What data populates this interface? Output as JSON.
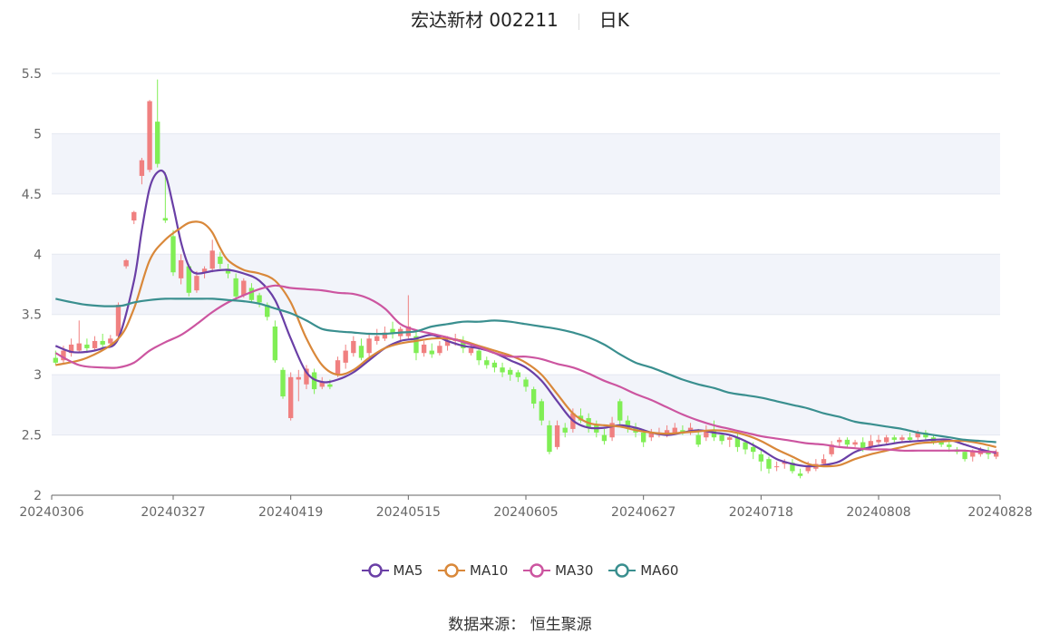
{
  "header": {
    "stock_name": "宏达新材 002211",
    "period": "日K"
  },
  "footer": {
    "source": "数据来源：  恒生聚源"
  },
  "legend": [
    {
      "name": "MA5",
      "color": "#6a3fa6"
    },
    {
      "name": "MA10",
      "color": "#d9883a"
    },
    {
      "name": "MA30",
      "color": "#cc55a0"
    },
    {
      "name": "MA60",
      "color": "#3a8f8f"
    }
  ],
  "colors": {
    "up": "#f08080",
    "down": "#80ee55",
    "grid": "#e4e8f0",
    "band": "#f2f4fa"
  },
  "chart_data": {
    "type": "candlestick",
    "title": "宏达新材 002211",
    "ylim": [
      2,
      5.5
    ],
    "yticks": [
      "2",
      "2.5",
      "3",
      "3.5",
      "4",
      "4.5",
      "5",
      "5.5"
    ],
    "xtick_labels": [
      "20240306",
      "20240327",
      "20240419",
      "20240515",
      "20240605",
      "20240627",
      "20240718",
      "20240808",
      "20240828"
    ],
    "xtick_index": [
      0,
      15,
      30,
      45,
      60,
      75,
      90,
      105,
      120
    ],
    "num_bars": 121,
    "ohlc": [
      [
        3.14,
        3.1,
        3.2,
        3.08
      ],
      [
        3.12,
        3.2,
        3.24,
        3.1
      ],
      [
        3.18,
        3.25,
        3.3,
        3.15
      ],
      [
        3.2,
        3.26,
        3.45,
        3.18
      ],
      [
        3.25,
        3.22,
        3.3,
        3.18
      ],
      [
        3.22,
        3.28,
        3.32,
        3.2
      ],
      [
        3.28,
        3.25,
        3.34,
        3.22
      ],
      [
        3.26,
        3.3,
        3.33,
        3.24
      ],
      [
        3.32,
        3.58,
        3.6,
        3.3
      ],
      [
        3.9,
        3.95,
        3.96,
        3.88
      ],
      [
        4.28,
        4.35,
        4.36,
        4.25
      ],
      [
        4.65,
        4.78,
        4.8,
        4.58
      ],
      [
        4.7,
        5.27,
        5.28,
        4.68
      ],
      [
        5.1,
        4.75,
        5.45,
        4.72
      ],
      [
        4.3,
        4.28,
        4.68,
        4.26
      ],
      [
        4.15,
        3.85,
        4.2,
        3.82
      ],
      [
        3.8,
        3.95,
        4.0,
        3.75
      ],
      [
        3.9,
        3.68,
        3.92,
        3.65
      ],
      [
        3.7,
        3.82,
        3.86,
        3.68
      ],
      [
        3.85,
        3.88,
        3.9,
        3.8
      ],
      [
        3.88,
        4.03,
        4.12,
        3.85
      ],
      [
        3.98,
        3.92,
        4.02,
        3.88
      ],
      [
        3.88,
        3.84,
        3.92,
        3.8
      ],
      [
        3.8,
        3.65,
        3.84,
        3.62
      ],
      [
        3.66,
        3.78,
        3.8,
        3.64
      ],
      [
        3.72,
        3.62,
        3.76,
        3.6
      ],
      [
        3.66,
        3.6,
        3.68,
        3.56
      ],
      [
        3.58,
        3.48,
        3.6,
        3.45
      ],
      [
        3.4,
        3.12,
        3.45,
        3.1
      ],
      [
        3.04,
        2.82,
        3.06,
        2.8
      ],
      [
        2.64,
        2.98,
        3.02,
        2.62
      ],
      [
        2.96,
        2.98,
        3.04,
        2.78
      ],
      [
        2.92,
        3.05,
        3.08,
        2.88
      ],
      [
        3.02,
        2.88,
        3.05,
        2.84
      ],
      [
        2.9,
        2.94,
        2.98,
        2.88
      ],
      [
        2.92,
        2.9,
        2.96,
        2.88
      ],
      [
        3.0,
        3.12,
        3.15,
        2.98
      ],
      [
        3.1,
        3.2,
        3.25,
        3.05
      ],
      [
        3.18,
        3.28,
        3.32,
        3.15
      ],
      [
        3.24,
        3.14,
        3.3,
        3.12
      ],
      [
        3.18,
        3.3,
        3.34,
        3.15
      ],
      [
        3.28,
        3.32,
        3.38,
        3.25
      ],
      [
        3.3,
        3.35,
        3.4,
        3.28
      ],
      [
        3.38,
        3.34,
        3.44,
        3.3
      ],
      [
        3.32,
        3.38,
        3.4,
        3.28
      ],
      [
        3.32,
        3.4,
        3.66,
        3.3
      ],
      [
        3.32,
        3.18,
        3.36,
        3.12
      ],
      [
        3.18,
        3.25,
        3.28,
        3.15
      ],
      [
        3.2,
        3.17,
        3.26,
        3.14
      ],
      [
        3.18,
        3.24,
        3.28,
        3.16
      ],
      [
        3.24,
        3.28,
        3.32,
        3.2
      ],
      [
        3.28,
        3.3,
        3.34,
        3.24
      ],
      [
        3.28,
        3.22,
        3.32,
        3.18
      ],
      [
        3.18,
        3.22,
        3.26,
        3.16
      ],
      [
        3.2,
        3.12,
        3.22,
        3.08
      ],
      [
        3.12,
        3.08,
        3.15,
        3.05
      ],
      [
        3.1,
        3.06,
        3.12,
        3.02
      ],
      [
        3.06,
        3.02,
        3.1,
        2.98
      ],
      [
        3.04,
        3.0,
        3.06,
        2.95
      ],
      [
        3.02,
        2.98,
        3.04,
        2.94
      ],
      [
        2.96,
        2.9,
        2.98,
        2.86
      ],
      [
        2.88,
        2.76,
        2.9,
        2.72
      ],
      [
        2.78,
        2.62,
        2.8,
        2.58
      ],
      [
        2.58,
        2.36,
        2.62,
        2.34
      ],
      [
        2.4,
        2.58,
        2.62,
        2.38
      ],
      [
        2.56,
        2.52,
        2.6,
        2.48
      ],
      [
        2.55,
        2.68,
        2.72,
        2.52
      ],
      [
        2.66,
        2.62,
        2.72,
        2.6
      ],
      [
        2.64,
        2.56,
        2.68,
        2.52
      ],
      [
        2.58,
        2.52,
        2.62,
        2.48
      ],
      [
        2.5,
        2.45,
        2.55,
        2.42
      ],
      [
        2.48,
        2.6,
        2.65,
        2.45
      ],
      [
        2.78,
        2.62,
        2.8,
        2.58
      ],
      [
        2.62,
        2.56,
        2.66,
        2.52
      ],
      [
        2.56,
        2.52,
        2.6,
        2.48
      ],
      [
        2.52,
        2.44,
        2.55,
        2.4
      ],
      [
        2.48,
        2.52,
        2.55,
        2.45
      ],
      [
        2.5,
        2.52,
        2.56,
        2.48
      ],
      [
        2.5,
        2.54,
        2.58,
        2.48
      ],
      [
        2.52,
        2.56,
        2.6,
        2.5
      ],
      [
        2.54,
        2.52,
        2.58,
        2.5
      ],
      [
        2.52,
        2.56,
        2.6,
        2.5
      ],
      [
        2.5,
        2.42,
        2.55,
        2.4
      ],
      [
        2.48,
        2.53,
        2.58,
        2.45
      ],
      [
        2.54,
        2.48,
        2.62,
        2.45
      ],
      [
        2.5,
        2.45,
        2.52,
        2.42
      ],
      [
        2.46,
        2.48,
        2.5,
        2.4
      ],
      [
        2.48,
        2.4,
        2.52,
        2.36
      ],
      [
        2.44,
        2.38,
        2.46,
        2.34
      ],
      [
        2.4,
        2.36,
        2.44,
        2.3
      ],
      [
        2.34,
        2.28,
        2.38,
        2.2
      ],
      [
        2.3,
        2.22,
        2.32,
        2.18
      ],
      [
        2.24,
        2.24,
        2.28,
        2.2
      ],
      [
        2.26,
        2.28,
        2.3,
        2.22
      ],
      [
        2.27,
        2.2,
        2.3,
        2.18
      ],
      [
        2.18,
        2.16,
        2.22,
        2.14
      ],
      [
        2.2,
        2.24,
        2.28,
        2.18
      ],
      [
        2.22,
        2.26,
        2.3,
        2.2
      ],
      [
        2.26,
        2.3,
        2.34,
        2.24
      ],
      [
        2.34,
        2.42,
        2.45,
        2.32
      ],
      [
        2.44,
        2.46,
        2.48,
        2.4
      ],
      [
        2.46,
        2.42,
        2.48,
        2.4
      ],
      [
        2.42,
        2.44,
        2.46,
        2.4
      ],
      [
        2.44,
        2.38,
        2.48,
        2.36
      ],
      [
        2.4,
        2.45,
        2.5,
        2.38
      ],
      [
        2.44,
        2.46,
        2.5,
        2.42
      ],
      [
        2.44,
        2.48,
        2.5,
        2.42
      ],
      [
        2.48,
        2.46,
        2.5,
        2.44
      ],
      [
        2.46,
        2.48,
        2.5,
        2.44
      ],
      [
        2.48,
        2.46,
        2.52,
        2.44
      ],
      [
        2.48,
        2.52,
        2.54,
        2.46
      ],
      [
        2.52,
        2.48,
        2.54,
        2.46
      ],
      [
        2.48,
        2.44,
        2.5,
        2.42
      ],
      [
        2.44,
        2.42,
        2.46,
        2.4
      ],
      [
        2.42,
        2.4,
        2.46,
        2.36
      ],
      [
        2.38,
        2.36,
        2.4,
        2.34
      ],
      [
        2.36,
        2.3,
        2.38,
        2.28
      ],
      [
        2.32,
        2.36,
        2.38,
        2.28
      ],
      [
        2.34,
        2.38,
        2.4,
        2.32
      ],
      [
        2.36,
        2.34,
        2.4,
        2.3
      ],
      [
        2.32,
        2.36,
        2.38,
        2.3
      ]
    ],
    "series": [
      {
        "name": "MA5",
        "x": [
          0,
          2,
          4,
          6,
          8,
          10,
          11,
          12,
          13,
          14,
          15,
          16,
          17,
          18,
          20,
          22,
          24,
          26,
          28,
          30,
          32,
          34,
          36,
          38,
          40,
          42,
          44,
          46,
          48,
          50,
          52,
          54,
          56,
          58,
          60,
          62,
          64,
          66,
          68,
          70,
          72,
          74,
          76,
          78,
          80,
          82,
          84,
          86,
          88,
          90,
          92,
          94,
          96,
          98,
          100,
          102,
          104,
          106,
          108,
          110,
          112,
          114,
          116,
          118,
          120
        ],
        "y": [
          3.24,
          3.19,
          3.19,
          3.22,
          3.3,
          3.78,
          4.2,
          4.55,
          4.68,
          4.66,
          4.4,
          4.1,
          3.9,
          3.84,
          3.86,
          3.87,
          3.84,
          3.78,
          3.62,
          3.3,
          3.02,
          2.94,
          2.96,
          3.02,
          3.12,
          3.22,
          3.28,
          3.3,
          3.33,
          3.28,
          3.24,
          3.22,
          3.18,
          3.12,
          3.06,
          2.95,
          2.78,
          2.62,
          2.56,
          2.56,
          2.58,
          2.56,
          2.52,
          2.5,
          2.52,
          2.54,
          2.52,
          2.5,
          2.45,
          2.38,
          2.3,
          2.26,
          2.24,
          2.25,
          2.28,
          2.36,
          2.4,
          2.42,
          2.44,
          2.45,
          2.46,
          2.46,
          2.42,
          2.38,
          2.35
        ]
      },
      {
        "name": "MA10",
        "x": [
          0,
          4,
          8,
          10,
          12,
          14,
          16,
          17,
          18,
          19,
          20,
          21,
          22,
          24,
          26,
          28,
          30,
          32,
          34,
          36,
          38,
          40,
          42,
          44,
          46,
          48,
          50,
          52,
          54,
          56,
          58,
          60,
          62,
          64,
          66,
          68,
          70,
          72,
          74,
          76,
          78,
          80,
          82,
          84,
          86,
          88,
          90,
          92,
          94,
          96,
          98,
          100,
          102,
          104,
          106,
          108,
          110,
          112,
          114,
          116,
          118,
          120
        ],
        "y": [
          3.08,
          3.14,
          3.3,
          3.55,
          3.95,
          4.12,
          4.22,
          4.26,
          4.27,
          4.25,
          4.18,
          4.05,
          3.95,
          3.87,
          3.84,
          3.78,
          3.6,
          3.3,
          3.08,
          3.0,
          3.04,
          3.14,
          3.22,
          3.26,
          3.28,
          3.3,
          3.3,
          3.28,
          3.24,
          3.2,
          3.16,
          3.1,
          3.0,
          2.84,
          2.68,
          2.6,
          2.58,
          2.57,
          2.54,
          2.52,
          2.51,
          2.52,
          2.53,
          2.54,
          2.53,
          2.5,
          2.45,
          2.38,
          2.32,
          2.26,
          2.24,
          2.25,
          2.3,
          2.34,
          2.37,
          2.4,
          2.43,
          2.44,
          2.45,
          2.45,
          2.43,
          2.4
        ]
      },
      {
        "name": "MA30",
        "x": [
          0,
          3,
          6,
          8,
          10,
          12,
          14,
          16,
          18,
          20,
          22,
          24,
          26,
          28,
          30,
          32,
          34,
          36,
          38,
          40,
          42,
          44,
          46,
          48,
          50,
          52,
          54,
          56,
          58,
          60,
          62,
          64,
          66,
          68,
          70,
          72,
          74,
          76,
          78,
          80,
          82,
          84,
          86,
          88,
          90,
          92,
          94,
          96,
          98,
          100,
          102,
          104,
          106,
          108,
          110,
          112,
          114,
          116,
          118,
          120
        ],
        "y": [
          3.18,
          3.08,
          3.06,
          3.06,
          3.1,
          3.2,
          3.27,
          3.33,
          3.42,
          3.52,
          3.6,
          3.66,
          3.71,
          3.74,
          3.72,
          3.71,
          3.7,
          3.68,
          3.67,
          3.63,
          3.55,
          3.42,
          3.37,
          3.34,
          3.31,
          3.27,
          3.23,
          3.18,
          3.15,
          3.15,
          3.13,
          3.09,
          3.06,
          3.01,
          2.95,
          2.9,
          2.84,
          2.79,
          2.73,
          2.67,
          2.62,
          2.58,
          2.55,
          2.52,
          2.49,
          2.47,
          2.45,
          2.43,
          2.42,
          2.4,
          2.39,
          2.38,
          2.38,
          2.37,
          2.37,
          2.37,
          2.37,
          2.37,
          2.36,
          2.36
        ]
      },
      {
        "name": "MA60",
        "x": [
          0,
          4,
          8,
          10,
          12,
          14,
          16,
          18,
          20,
          22,
          24,
          26,
          28,
          30,
          32,
          34,
          36,
          38,
          40,
          42,
          44,
          46,
          48,
          50,
          52,
          54,
          56,
          58,
          60,
          62,
          64,
          66,
          68,
          70,
          72,
          74,
          76,
          78,
          80,
          82,
          84,
          86,
          88,
          90,
          92,
          94,
          96,
          98,
          100,
          102,
          104,
          106,
          108,
          110,
          112,
          114,
          116,
          118,
          120
        ],
        "y": [
          3.63,
          3.58,
          3.57,
          3.6,
          3.62,
          3.63,
          3.63,
          3.63,
          3.63,
          3.62,
          3.61,
          3.59,
          3.55,
          3.51,
          3.45,
          3.38,
          3.36,
          3.35,
          3.34,
          3.34,
          3.35,
          3.36,
          3.4,
          3.42,
          3.44,
          3.44,
          3.45,
          3.44,
          3.42,
          3.4,
          3.38,
          3.35,
          3.31,
          3.25,
          3.17,
          3.1,
          3.06,
          3.01,
          2.96,
          2.92,
          2.89,
          2.85,
          2.83,
          2.81,
          2.78,
          2.75,
          2.72,
          2.68,
          2.65,
          2.61,
          2.59,
          2.57,
          2.55,
          2.52,
          2.5,
          2.48,
          2.46,
          2.45,
          2.44
        ]
      }
    ]
  }
}
